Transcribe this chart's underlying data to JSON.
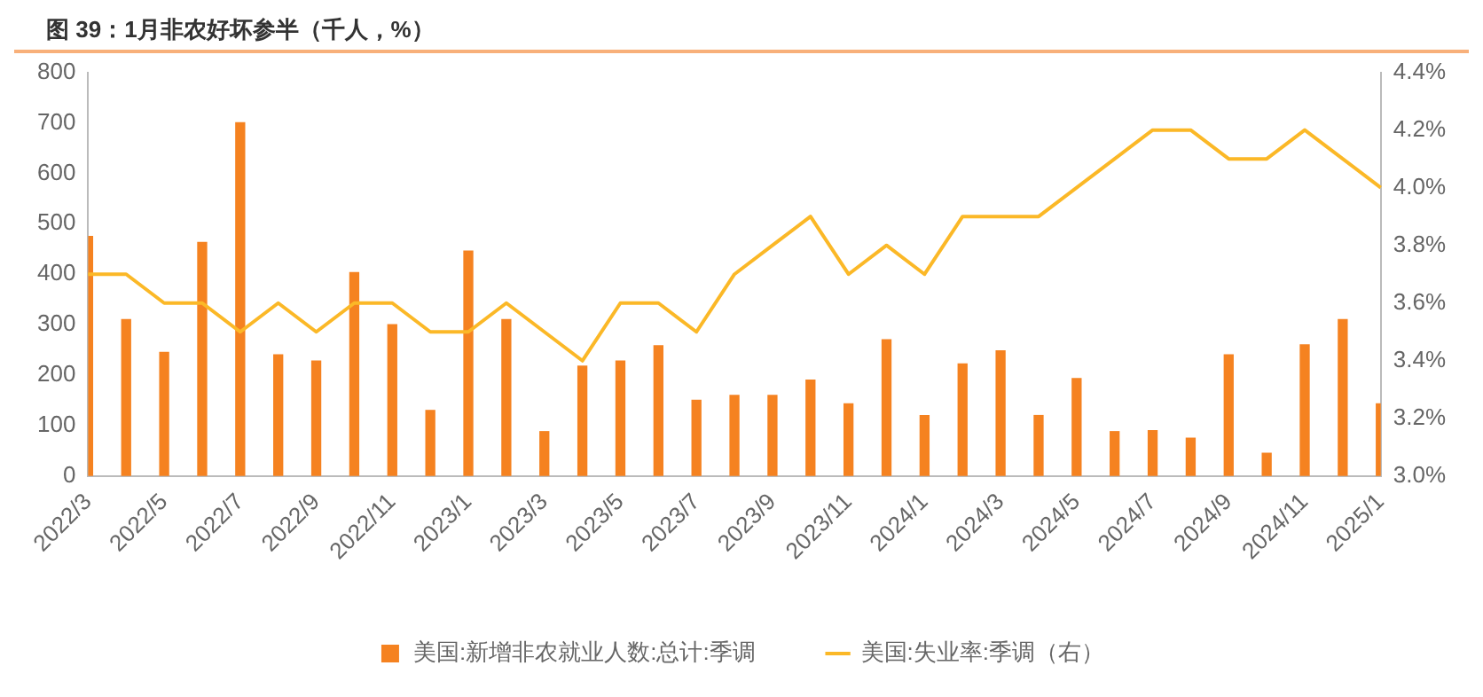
{
  "chart_data": {
    "type": "bar",
    "title": "图 39：1月非农好坏参半（千人，%）",
    "categories": [
      "2022/3",
      null,
      "2022/5",
      null,
      "2022/7",
      null,
      "2022/9",
      null,
      "2022/11",
      null,
      "2023/1",
      null,
      "2023/3",
      null,
      "2023/5",
      null,
      "2023/7",
      null,
      "2023/9",
      null,
      "2023/11",
      null,
      "2024/1",
      null,
      "2024/3",
      null,
      "2024/5",
      null,
      "2024/7",
      null,
      "2024/9",
      null,
      "2024/11",
      null,
      "2025/1"
    ],
    "series": [
      {
        "name": "美国:新增非农就业人数:总计:季调",
        "color": "#f58220",
        "values": [
          475,
          310,
          245,
          463,
          700,
          240,
          228,
          403,
          300,
          130,
          446,
          310,
          88,
          218,
          228,
          258,
          150,
          160,
          160,
          190,
          143,
          270,
          120,
          222,
          248,
          120,
          193,
          88,
          90,
          75,
          240,
          45,
          260,
          310,
          143
        ]
      },
      {
        "name": "美国:失业率:季调（右）",
        "type": "line",
        "axis": "y2",
        "color": "#fbb827",
        "values": [
          3.7,
          3.7,
          3.6,
          3.6,
          3.5,
          3.6,
          3.5,
          3.6,
          3.6,
          3.5,
          3.5,
          3.6,
          3.5,
          3.4,
          3.6,
          3.6,
          3.5,
          3.7,
          3.8,
          3.9,
          3.7,
          3.8,
          3.7,
          3.9,
          3.9,
          3.9,
          4.0,
          4.1,
          4.2,
          4.2,
          4.1,
          4.1,
          4.2,
          4.1,
          4.0
        ]
      }
    ],
    "ylim": [
      0,
      800
    ],
    "yticks": [
      0,
      100,
      200,
      300,
      400,
      500,
      600,
      700,
      800
    ],
    "y2lim": [
      3.0,
      4.4
    ],
    "y2ticks": [
      {
        "value": 3.0,
        "label": "3.0%"
      },
      {
        "value": 3.2,
        "label": "3.2%"
      },
      {
        "value": 3.4,
        "label": "3.4%"
      },
      {
        "value": 3.6,
        "label": "3.6%"
      },
      {
        "value": 3.8,
        "label": "3.8%"
      },
      {
        "value": 4.0,
        "label": "4.0%"
      },
      {
        "value": 4.2,
        "label": "4.2%"
      },
      {
        "value": 4.4,
        "label": "4.4%"
      }
    ],
    "grid": false,
    "legend": "bottom",
    "marker": "none"
  }
}
